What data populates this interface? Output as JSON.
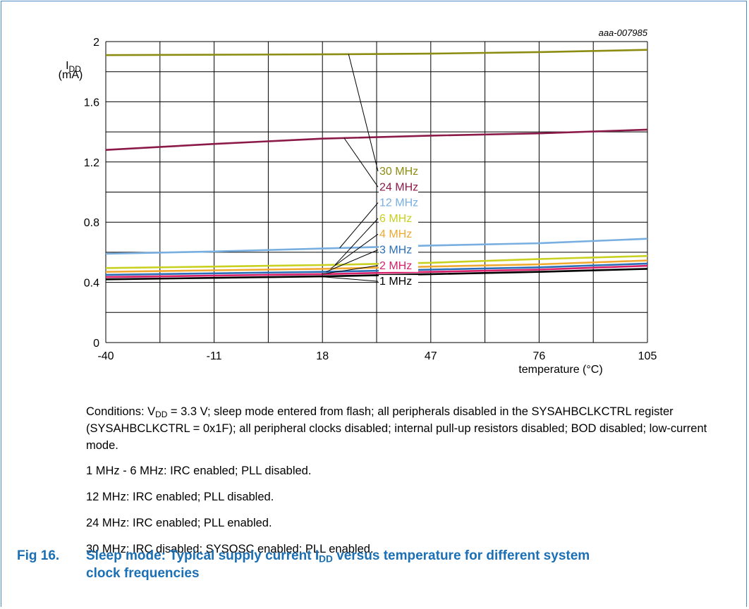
{
  "chart_data": {
    "type": "line",
    "id_label": "aaa-007985",
    "ylabel_main": "I",
    "ylabel_sub": "DD",
    "ylabel_unit": "(mA)",
    "xlabel": "temperature (°C)",
    "xlim": [
      -40,
      105
    ],
    "ylim": [
      0,
      2
    ],
    "xticks": [
      "-40",
      "-11",
      "18",
      "47",
      "76",
      "105"
    ],
    "yticks": [
      "0",
      "0.4",
      "0.8",
      "1.2",
      "1.6",
      "2"
    ],
    "grid": true,
    "series": [
      {
        "name": "30 MHz",
        "color": "#8c8c12",
        "x": [
          -40,
          18,
          47,
          76,
          105
        ],
        "y": [
          1.91,
          1.915,
          1.92,
          1.93,
          1.945
        ]
      },
      {
        "name": "24 MHz",
        "color": "#8b1a48",
        "x": [
          -40,
          -11,
          18,
          47,
          76,
          105
        ],
        "y": [
          1.28,
          1.32,
          1.355,
          1.375,
          1.39,
          1.415
        ]
      },
      {
        "name": "12 MHz",
        "color": "#78aee0",
        "x": [
          -40,
          -11,
          18,
          47,
          76,
          105
        ],
        "y": [
          0.59,
          0.605,
          0.625,
          0.645,
          0.66,
          0.69
        ]
      },
      {
        "name": "6 MHz",
        "color": "#c8d020",
        "x": [
          -40,
          -11,
          18,
          47,
          76,
          105
        ],
        "y": [
          0.495,
          0.505,
          0.515,
          0.53,
          0.555,
          0.575
        ]
      },
      {
        "name": "4 MHz",
        "color": "#f0a830",
        "x": [
          -40,
          -11,
          18,
          47,
          76,
          105
        ],
        "y": [
          0.47,
          0.48,
          0.49,
          0.505,
          0.52,
          0.545
        ]
      },
      {
        "name": "3 MHz",
        "color": "#2a6fb8",
        "x": [
          -40,
          -11,
          18,
          47,
          76,
          105
        ],
        "y": [
          0.45,
          0.46,
          0.47,
          0.485,
          0.5,
          0.525
        ]
      },
      {
        "name": "2 MHz",
        "color": "#d8206a",
        "x": [
          -40,
          -11,
          18,
          47,
          76,
          105
        ],
        "y": [
          0.435,
          0.445,
          0.455,
          0.47,
          0.485,
          0.51
        ]
      },
      {
        "name": "1 MHz",
        "color": "#000000",
        "x": [
          -40,
          -11,
          18,
          47,
          76,
          105
        ],
        "y": [
          0.42,
          0.43,
          0.44,
          0.455,
          0.47,
          0.49
        ]
      }
    ]
  },
  "notes": {
    "conditions_pre": "Conditions: V",
    "conditions_sub": "DD",
    "conditions_post": " = 3.3 V; sleep mode entered from flash; all peripherals disabled in the SYSAHBCLKCTRL register (SYSAHBCLKCTRL = 0x1F); all peripheral clocks disabled; internal pull-up resistors disabled; BOD disabled; low-current mode.",
    "items": [
      "1 MHz - 6 MHz: IRC enabled; PLL disabled.",
      "12 MHz: IRC enabled; PLL disabled.",
      "24 MHz: IRC enabled; PLL enabled.",
      "30 MHz: IRC disabled; SYSOSC enabled; PLL enabled."
    ]
  },
  "caption": {
    "number": "Fig 16.",
    "pre": "Sleep mode: Typical supply current I",
    "sub": "DD",
    "post": " versus temperature for different system",
    "line2": "clock frequencies"
  }
}
